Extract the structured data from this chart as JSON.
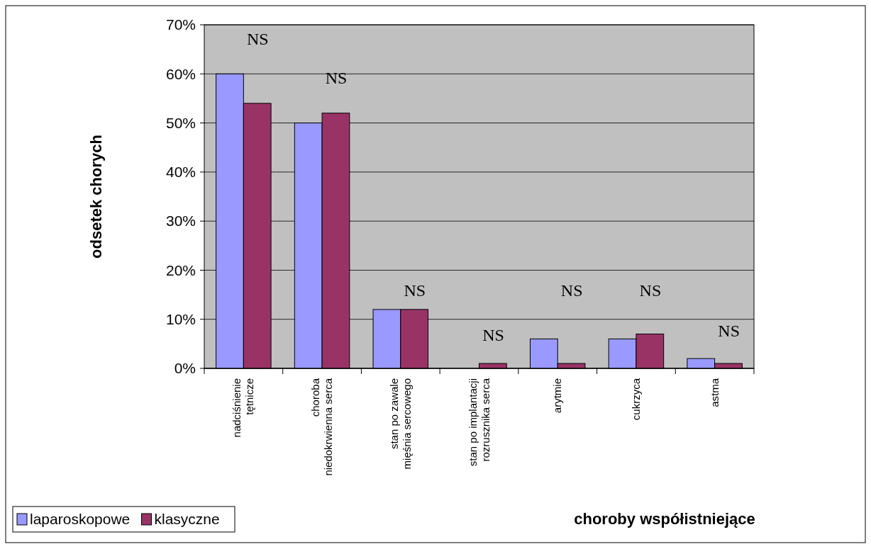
{
  "chart_data": {
    "type": "bar",
    "xlabel": "choroby współistniejące",
    "ylabel": "odsetek chorych",
    "categories": [
      "nadciśnienie tętnicze",
      "choroba niedokrwienna serca",
      "stan po zawale mięśnia sercowego",
      "stan po implantacji rozrusznika serca",
      "arytmie",
      "cukrzyca",
      "astma"
    ],
    "series": [
      {
        "name": "laparoskopowe",
        "color": "#9999ff",
        "values": [
          60,
          50,
          12,
          0,
          6,
          6,
          2
        ]
      },
      {
        "name": "klasyczne",
        "color": "#993366",
        "values": [
          54,
          52,
          12,
          1,
          1,
          7,
          1
        ]
      }
    ],
    "ylim": [
      0,
      70
    ],
    "yticks": [
      {
        "value": 0,
        "label": "0%"
      },
      {
        "value": 10,
        "label": "10%"
      },
      {
        "value": 20,
        "label": "20%"
      },
      {
        "value": 30,
        "label": "30%"
      },
      {
        "value": 40,
        "label": "40%"
      },
      {
        "value": 50,
        "label": "50%"
      },
      {
        "value": 60,
        "label": "60%"
      },
      {
        "value": 70,
        "label": "70%"
      }
    ],
    "grid": "y",
    "legend": "bottom left",
    "annotations": [
      "NS",
      "NS",
      "NS",
      "NS",
      "NS",
      "NS",
      "NS"
    ]
  }
}
